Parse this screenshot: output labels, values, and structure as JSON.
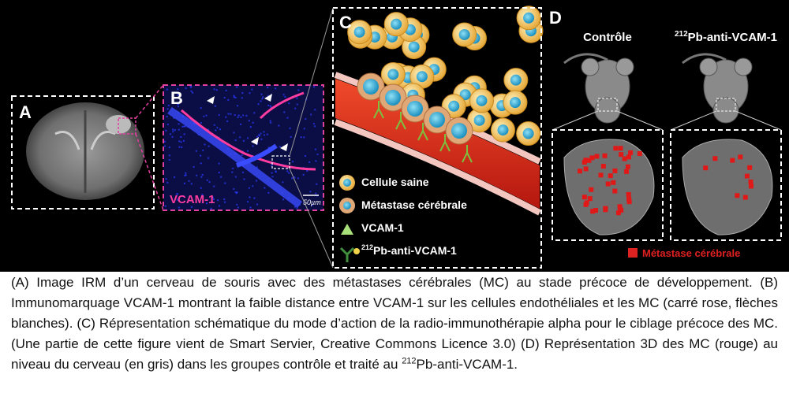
{
  "panels": {
    "a": {
      "label": "A"
    },
    "b": {
      "label": "B",
      "marker": "VCAM-1",
      "scale": "50µm"
    },
    "c": {
      "label": "C",
      "legend": [
        {
          "text": "Cellule saine"
        },
        {
          "text": "Métastase cérébrale"
        },
        {
          "text": "VCAM-1"
        },
        {
          "sup": "212",
          "text": "Pb-anti-VCAM-1"
        }
      ]
    },
    "d": {
      "label": "D",
      "groups": [
        {
          "text": "Contrôle"
        },
        {
          "sup": "212",
          "text": "Pb-anti-VCAM-1"
        }
      ],
      "legend": "Métastase cérébrale"
    }
  },
  "caption": {
    "main": "(A) Image IRM d’un cerveau de souris avec des métastases cérébrales (MC) au stade précoce de développement. (B) Immunomarquage VCAM-1 montrant la faible distance entre VCAM-1 sur les cellules endothéliales et les MC (carré rose, flèches blanches). (C) Répresentation schématique du mode d’action de la radio-immunothérapie alpha pour le ciblage précoce des MC. (Une partie de cette figure vient de Smart Servier, Creative Commons Licence 3.0) (D) Représentation 3D des MC (rouge) au niveau du cerveau (en gris) dans les groupes contrôle et traité au ",
    "sup": "212",
    "end": "Pb-anti-VCAM-1."
  }
}
